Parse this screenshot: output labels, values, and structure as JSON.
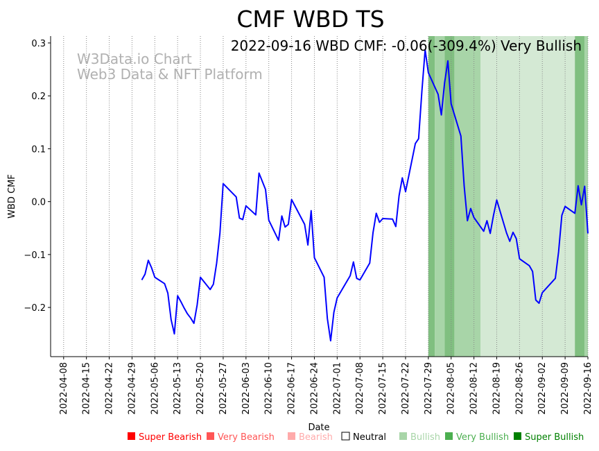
{
  "chart_data": {
    "type": "line",
    "title": "CMF WBD TS",
    "annotation": "2022-09-16 WBD CMF: -0.06(-309.4%) Very Bullish",
    "watermark": [
      "W3Data.io Chart",
      "Web3 Data & NFT Platform"
    ],
    "xlabel": "Date",
    "ylabel": "WBD CMF",
    "xlim": [
      "2022-04-04",
      "2022-09-16"
    ],
    "ylim": [
      -0.293,
      0.313
    ],
    "grid": "vertical dotted",
    "x_ticks": [
      "2022-04-08",
      "2022-04-15",
      "2022-04-22",
      "2022-04-29",
      "2022-05-06",
      "2022-05-13",
      "2022-05-20",
      "2022-05-27",
      "2022-06-03",
      "2022-06-10",
      "2022-06-17",
      "2022-06-24",
      "2022-07-01",
      "2022-07-08",
      "2022-07-15",
      "2022-07-22",
      "2022-07-29",
      "2022-08-05",
      "2022-08-12",
      "2022-08-19",
      "2022-08-26",
      "2022-09-02",
      "2022-09-09",
      "2022-09-16"
    ],
    "y_ticks": [
      -0.2,
      -0.1,
      0.0,
      0.1,
      0.2,
      0.3
    ],
    "y_tick_labels": [
      "−0.2",
      "−0.1",
      "0.0",
      "0.1",
      "0.2",
      "0.3"
    ],
    "series": [
      {
        "name": "WBD CMF",
        "color": "#0000ff",
        "x": [
          "2022-05-02",
          "2022-05-03",
          "2022-05-04",
          "2022-05-05",
          "2022-05-06",
          "2022-05-09",
          "2022-05-10",
          "2022-05-11",
          "2022-05-12",
          "2022-05-13",
          "2022-05-14",
          "2022-05-15",
          "2022-05-16",
          "2022-05-17",
          "2022-05-18",
          "2022-05-19",
          "2022-05-20",
          "2022-05-23",
          "2022-05-24",
          "2022-05-25",
          "2022-05-26",
          "2022-05-27",
          "2022-05-31",
          "2022-06-01",
          "2022-06-02",
          "2022-06-03",
          "2022-06-06",
          "2022-06-07",
          "2022-06-09",
          "2022-06-10",
          "2022-06-13",
          "2022-06-14",
          "2022-06-15",
          "2022-06-16",
          "2022-06-17",
          "2022-06-21",
          "2022-06-22",
          "2022-06-23",
          "2022-06-24",
          "2022-06-27",
          "2022-06-28",
          "2022-06-29",
          "2022-06-30",
          "2022-07-01",
          "2022-07-05",
          "2022-07-06",
          "2022-07-07",
          "2022-07-08",
          "2022-07-11",
          "2022-07-12",
          "2022-07-13",
          "2022-07-14",
          "2022-07-15",
          "2022-07-18",
          "2022-07-19",
          "2022-07-20",
          "2022-07-21",
          "2022-07-22",
          "2022-07-25",
          "2022-07-26",
          "2022-07-27",
          "2022-07-28",
          "2022-07-29",
          "2022-08-01",
          "2022-08-02",
          "2022-08-03",
          "2022-08-04",
          "2022-08-05",
          "2022-08-08",
          "2022-08-09",
          "2022-08-10",
          "2022-08-11",
          "2022-08-12",
          "2022-08-15",
          "2022-08-16",
          "2022-08-17",
          "2022-08-18",
          "2022-08-19",
          "2022-08-22",
          "2022-08-23",
          "2022-08-24",
          "2022-08-25",
          "2022-08-26",
          "2022-08-29",
          "2022-08-30",
          "2022-08-31",
          "2022-09-01",
          "2022-09-02",
          "2022-09-06",
          "2022-09-07",
          "2022-09-08",
          "2022-09-09",
          "2022-09-12",
          "2022-09-13",
          "2022-09-14",
          "2022-09-15",
          "2022-09-16"
        ],
        "values": [
          -0.148,
          -0.137,
          -0.111,
          -0.125,
          -0.143,
          -0.155,
          -0.173,
          -0.223,
          -0.25,
          -0.178,
          -0.189,
          -0.201,
          -0.212,
          -0.22,
          -0.23,
          -0.195,
          -0.143,
          -0.166,
          -0.156,
          -0.116,
          -0.06,
          0.034,
          0.009,
          -0.031,
          -0.034,
          -0.008,
          -0.025,
          0.054,
          0.023,
          -0.035,
          -0.073,
          -0.027,
          -0.048,
          -0.043,
          0.004,
          -0.043,
          -0.082,
          -0.017,
          -0.106,
          -0.143,
          -0.221,
          -0.263,
          -0.209,
          -0.182,
          -0.14,
          -0.114,
          -0.145,
          -0.148,
          -0.116,
          -0.059,
          -0.022,
          -0.039,
          -0.032,
          -0.033,
          -0.047,
          0.011,
          0.045,
          0.019,
          0.11,
          0.119,
          0.208,
          0.287,
          0.244,
          0.203,
          0.164,
          0.225,
          0.266,
          0.185,
          0.124,
          0.03,
          -0.036,
          -0.013,
          -0.03,
          -0.056,
          -0.036,
          -0.06,
          -0.026,
          0.003,
          -0.059,
          -0.075,
          -0.058,
          -0.07,
          -0.108,
          -0.121,
          -0.132,
          -0.186,
          -0.192,
          -0.172,
          -0.145,
          -0.095,
          -0.026,
          -0.009,
          -0.022,
          0.03,
          -0.006,
          0.029,
          -0.06
        ]
      }
    ],
    "bands": [
      {
        "start": "2022-07-29",
        "end": "2022-07-31",
        "level": "Very Bullish"
      },
      {
        "start": "2022-07-31",
        "end": "2022-08-03",
        "level": "Bullish"
      },
      {
        "start": "2022-08-03",
        "end": "2022-08-06",
        "level": "Very Bullish"
      },
      {
        "start": "2022-08-06",
        "end": "2022-08-14",
        "level": "Bullish"
      },
      {
        "start": "2022-08-14",
        "end": "2022-09-12",
        "level": "Light Bullish"
      },
      {
        "start": "2022-09-12",
        "end": "2022-09-15",
        "level": "Very Bullish"
      },
      {
        "start": "2022-09-15",
        "end": "2022-09-16",
        "level": "Bullish"
      }
    ],
    "band_colors": {
      "Very Bullish": "#80bf80",
      "Bullish": "#a8d5a8",
      "Light Bullish": "#d4e9d4"
    },
    "legend": {
      "placement": "bottom",
      "items": [
        {
          "label": "Super Bearish",
          "color": "#ff0000",
          "text_color": "#ff0000"
        },
        {
          "label": "Very Bearish",
          "color": "#ff5555",
          "text_color": "#ff5555"
        },
        {
          "label": "Bearish",
          "color": "#ffaaaa",
          "text_color": "#ffaaaa"
        },
        {
          "label": "Neutral",
          "color": "#ffffff",
          "text_color": "#000000"
        },
        {
          "label": "Bullish",
          "color": "#a8d5a8",
          "text_color": "#a8d5a8"
        },
        {
          "label": "Very Bullish",
          "color": "#4caf50",
          "text_color": "#4caf50"
        },
        {
          "label": "Super Bullish",
          "color": "#008000",
          "text_color": "#008000"
        }
      ]
    }
  }
}
